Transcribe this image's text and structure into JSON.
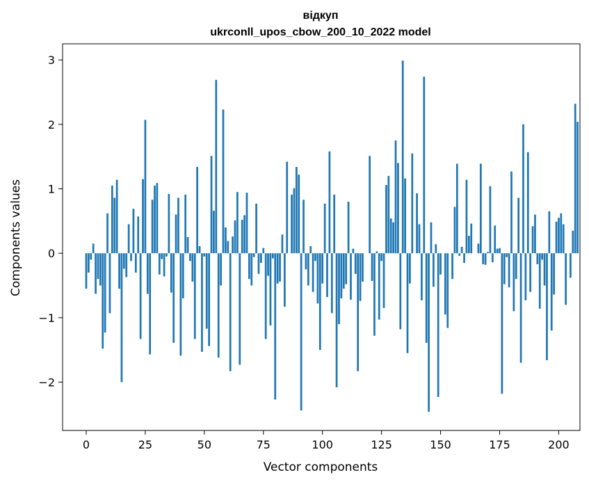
{
  "chart_data": {
    "type": "bar",
    "title": "вiдкуп",
    "subtitle": "ukrconll_upos_cbow_200_10_2022 model",
    "xlabel": "Vector components",
    "ylabel": "Components values",
    "xlim": [
      -10,
      209
    ],
    "ylim": [
      -2.75,
      3.25
    ],
    "x_ticks": [
      0,
      25,
      50,
      75,
      100,
      125,
      150,
      175,
      200
    ],
    "y_ticks": [
      -2,
      -1,
      0,
      1,
      2,
      3
    ],
    "x_tick_labels": [
      "0",
      "25",
      "50",
      "75",
      "100",
      "125",
      "150",
      "175",
      "200"
    ],
    "y_tick_labels": [
      "−2",
      "−1",
      "0",
      "1",
      "2",
      "3"
    ],
    "bar_color": "#1f77b4",
    "grid": false,
    "values": [
      -0.55,
      -0.3,
      -0.1,
      0.15,
      -0.63,
      -0.4,
      -0.5,
      -1.48,
      -1.23,
      0.62,
      -0.93,
      1.05,
      0.86,
      1.14,
      -0.55,
      -2.0,
      -0.24,
      -0.37,
      0.45,
      -0.12,
      0.69,
      -0.3,
      0.57,
      -1.33,
      1.15,
      2.07,
      -0.63,
      -1.57,
      0.83,
      1.05,
      1.09,
      -0.33,
      -0.09,
      -0.36,
      -0.05,
      0.92,
      -0.61,
      -1.39,
      0.6,
      0.86,
      -1.59,
      -0.7,
      0.91,
      0.25,
      -0.12,
      -0.44,
      -1.33,
      1.34,
      0.11,
      -1.53,
      -0.05,
      -1.17,
      -1.44,
      1.51,
      0.66,
      2.69,
      -1.62,
      -0.5,
      2.23,
      0.4,
      0.19,
      -1.83,
      0.26,
      0.51,
      0.95,
      -1.73,
      0.52,
      0.59,
      0.94,
      -0.4,
      -0.5,
      -0.06,
      0.77,
      -0.32,
      -0.15,
      0.08,
      -1.33,
      -0.35,
      -1.12,
      -0.08,
      -2.27,
      -0.47,
      -0.44,
      0.29,
      -0.83,
      1.42,
      0.0,
      0.91,
      1.01,
      1.34,
      1.22,
      -2.44,
      0.83,
      -0.25,
      -0.5,
      0.11,
      -0.6,
      -0.12,
      -0.78,
      -1.5,
      -0.47,
      0.77,
      -0.68,
      1.58,
      -0.93,
      0.91,
      -2.08,
      -1.1,
      -0.7,
      -0.55,
      -0.48,
      0.8,
      -0.72,
      0.07,
      -0.32,
      -1.83,
      -0.74,
      -0.44,
      0.0,
      0.0,
      1.51,
      -0.43,
      -1.28,
      0.03,
      -1.03,
      -0.12,
      -0.85,
      1.06,
      1.2,
      0.54,
      0.48,
      1.75,
      1.4,
      -1.18,
      2.99,
      1.16,
      -1.55,
      -0.47,
      1.55,
      0.0,
      0.93,
      0.45,
      -0.73,
      2.74,
      -1.39,
      -2.46,
      0.48,
      -0.52,
      0.14,
      -2.23,
      -0.33,
      0.0,
      -0.95,
      -1.16,
      0.0,
      -0.4,
      0.72,
      1.39,
      -0.04,
      0.1,
      -0.15,
      1.14,
      0.27,
      0.46,
      0.0,
      0.0,
      0.15,
      1.39,
      -0.17,
      -0.18,
      0.02,
      1.04,
      -0.14,
      0.43,
      0.07,
      0.08,
      -2.18,
      -0.48,
      -0.06,
      -0.53,
      1.27,
      -0.9,
      -0.4,
      0.86,
      -1.7,
      2.0,
      -0.73,
      1.57,
      -0.6,
      0.42,
      0.6,
      -0.17,
      -0.86,
      -0.1,
      -0.5,
      -1.66,
      0.65,
      -1.2,
      -0.64,
      0.49,
      0.55,
      0.62,
      0.45,
      -0.8,
      0.0,
      -0.38,
      0.35,
      2.32,
      2.04
    ]
  }
}
